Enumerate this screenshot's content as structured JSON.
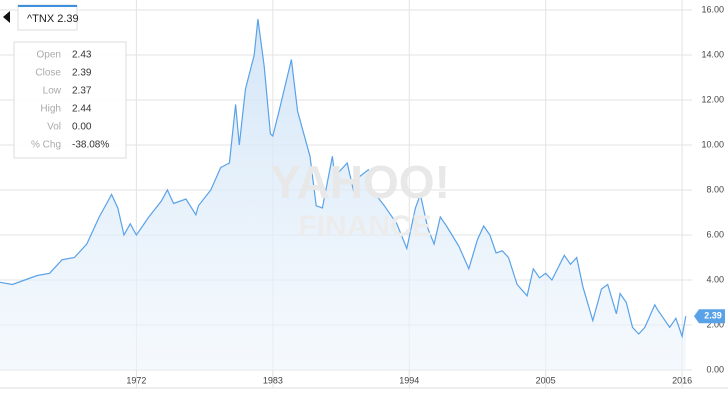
{
  "chart_data": {
    "type": "line",
    "header": "^TNX 2.39",
    "watermark": [
      "YAHOO!",
      "FINANCE"
    ],
    "tooltip": [
      {
        "label": "Open",
        "value": "2.43"
      },
      {
        "label": "Close",
        "value": "2.39"
      },
      {
        "label": "Low",
        "value": "2.37"
      },
      {
        "label": "High",
        "value": "2.44"
      },
      {
        "label": "Vol",
        "value": "0.00"
      },
      {
        "label": "% Chg",
        "value": "-38.08%"
      }
    ],
    "xlim": [
      1961,
      2016.8
    ],
    "xticks": [
      1972,
      1983,
      1994,
      2005,
      2016
    ],
    "ylim": [
      0,
      16
    ],
    "yticks": [
      {
        "value": 0,
        "label": "0.00"
      },
      {
        "value": 2,
        "label": "2.00"
      },
      {
        "value": 4,
        "label": "4.00"
      },
      {
        "value": 6,
        "label": "6.00"
      },
      {
        "value": 8,
        "label": "8.00"
      },
      {
        "value": 10,
        "label": "10.00"
      },
      {
        "value": 12,
        "label": "12.00"
      },
      {
        "value": 14,
        "label": "14.00"
      },
      {
        "value": 16,
        "label": "16.00"
      }
    ],
    "grid": true,
    "series": [
      {
        "name": "^TNX",
        "color": "#5aa2e8",
        "x": [
          1961,
          1962,
          1963,
          1964,
          1965,
          1966,
          1967,
          1968,
          1969,
          1970,
          1970.5,
          1971,
          1971.5,
          1972,
          1973,
          1974,
          1974.5,
          1975,
          1976,
          1976.8,
          1977,
          1978,
          1978.8,
          1979.5,
          1980,
          1980.3,
          1980.8,
          1981.5,
          1981.8,
          1982.3,
          1982.8,
          1983,
          1983.5,
          1984.5,
          1985,
          1985.5,
          1986,
          1986.5,
          1987,
          1987.8,
          1988,
          1989,
          1989.5,
          1990,
          1990.7,
          1991,
          1992,
          1993,
          1993.8,
          1994.5,
          1994.9,
          1995.5,
          1996,
          1996.5,
          1997,
          1998,
          1998.8,
          1999.5,
          2000,
          2000.5,
          2001,
          2001.5,
          2002,
          2002.7,
          2003.5,
          2004,
          2004.5,
          2005,
          2005.5,
          2006.5,
          2007,
          2007.5,
          2008,
          2008.8,
          2009.5,
          2010,
          2010.7,
          2011,
          2011.5,
          2012,
          2012.5,
          2013,
          2013.8,
          2014,
          2015,
          2015.5,
          2016,
          2016.1,
          2016.3
        ],
        "values": [
          3.9,
          3.8,
          4.0,
          4.2,
          4.3,
          4.9,
          5.0,
          5.6,
          6.8,
          7.8,
          7.2,
          6.0,
          6.5,
          6.0,
          6.8,
          7.5,
          8.0,
          7.4,
          7.6,
          6.9,
          7.3,
          8.0,
          9.0,
          9.2,
          11.8,
          10.0,
          12.5,
          14.0,
          15.6,
          13.5,
          10.5,
          10.4,
          11.5,
          13.8,
          11.5,
          10.5,
          9.5,
          7.3,
          7.2,
          9.5,
          8.6,
          9.2,
          8.0,
          8.6,
          8.9,
          8.0,
          7.3,
          6.5,
          5.4,
          7.2,
          7.8,
          6.3,
          5.6,
          6.8,
          6.4,
          5.5,
          4.5,
          5.8,
          6.4,
          6.0,
          5.2,
          5.3,
          5.0,
          3.8,
          3.3,
          4.5,
          4.1,
          4.3,
          4.0,
          5.1,
          4.7,
          5.0,
          3.7,
          2.2,
          3.6,
          3.8,
          2.5,
          3.4,
          3.0,
          1.9,
          1.6,
          1.9,
          2.9,
          2.7,
          1.9,
          2.3,
          1.5,
          1.8,
          2.39
        ]
      }
    ]
  }
}
